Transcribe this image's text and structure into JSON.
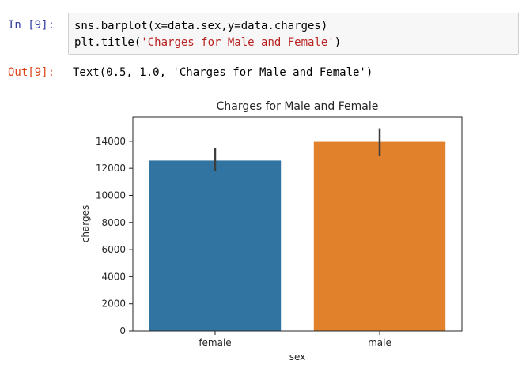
{
  "cell_in": {
    "prompt": "In [9]:",
    "code_line_1": "sns.barplot(x=data.sex,y=data.charges)",
    "code_line_2_prefix": "plt.title(",
    "code_line_2_string": "'Charges for Male and Female'",
    "code_line_2_suffix": ")"
  },
  "cell_out": {
    "prompt": "Out[9]:",
    "text": "Text(0.5, 1.0, 'Charges for Male and Female')"
  },
  "chart_data": {
    "type": "bar",
    "title": "Charges for Male and Female",
    "xlabel": "sex",
    "ylabel": "charges",
    "categories": [
      "female",
      "male"
    ],
    "values": [
      12570,
      13960
    ],
    "error_low": [
      11780,
      12920
    ],
    "error_high": [
      13470,
      14950
    ],
    "colors": [
      "#3274a1",
      "#e1812c"
    ],
    "ylim": [
      0,
      15800
    ],
    "yticks": [
      0,
      2000,
      4000,
      6000,
      8000,
      10000,
      12000,
      14000
    ],
    "grid": false
  }
}
